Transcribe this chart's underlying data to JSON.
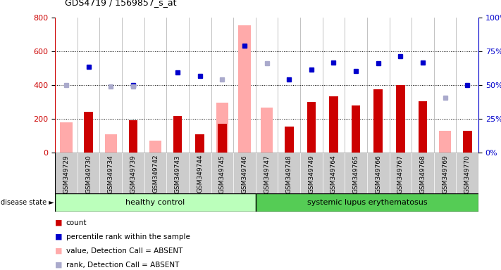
{
  "title": "GDS4719 / 1569857_s_at",
  "samples": [
    "GSM349729",
    "GSM349730",
    "GSM349734",
    "GSM349739",
    "GSM349742",
    "GSM349743",
    "GSM349744",
    "GSM349745",
    "GSM349746",
    "GSM349747",
    "GSM349748",
    "GSM349749",
    "GSM349764",
    "GSM349765",
    "GSM349766",
    "GSM349767",
    "GSM349768",
    "GSM349769",
    "GSM349770"
  ],
  "healthy_count": 9,
  "count_values": [
    null,
    240,
    null,
    190,
    null,
    215,
    110,
    170,
    null,
    null,
    155,
    300,
    335,
    280,
    375,
    400,
    305,
    null,
    130
  ],
  "value_absent": [
    180,
    null,
    110,
    null,
    70,
    null,
    null,
    295,
    755,
    265,
    null,
    null,
    null,
    null,
    null,
    null,
    null,
    130,
    null
  ],
  "percentile_rank": [
    null,
    510,
    null,
    400,
    null,
    475,
    455,
    null,
    635,
    null,
    435,
    490,
    535,
    485,
    530,
    570,
    535,
    null,
    400
  ],
  "rank_absent": [
    400,
    null,
    390,
    390,
    null,
    null,
    null,
    435,
    null,
    530,
    null,
    null,
    null,
    null,
    null,
    null,
    null,
    325,
    null
  ],
  "ylim_left": [
    0,
    800
  ],
  "ylim_right": [
    0,
    100
  ],
  "yticks_left": [
    0,
    200,
    400,
    600,
    800
  ],
  "yticks_right": [
    0,
    25,
    50,
    75,
    100
  ],
  "color_count": "#cc0000",
  "color_percentile": "#0000cc",
  "color_value_absent": "#ffaaaa",
  "color_rank_absent": "#aaaacc",
  "healthy_label": "healthy control",
  "disease_label": "systemic lupus erythematosus",
  "disease_state_label": "disease state",
  "background_color": "#ffffff",
  "group_healthy_color": "#bbffbb",
  "group_disease_color": "#55cc55"
}
